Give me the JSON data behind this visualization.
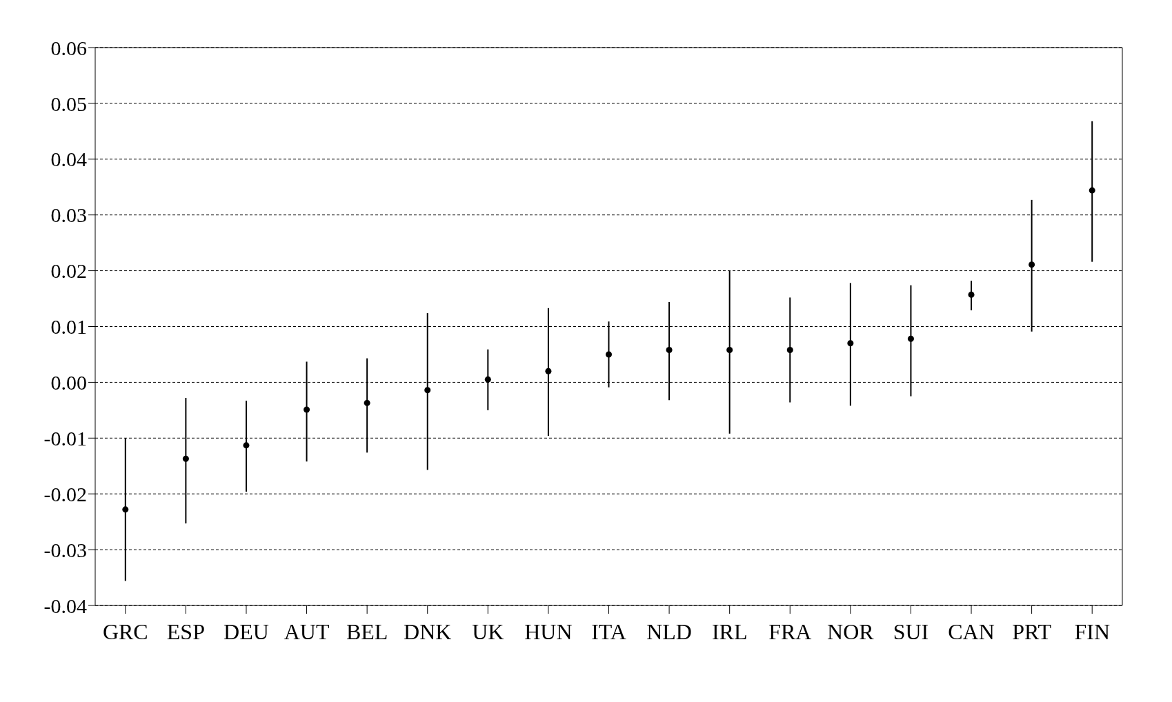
{
  "chart_data": {
    "type": "scatter",
    "categories": [
      "GRC",
      "ESP",
      "DEU",
      "AUT",
      "BEL",
      "DNK",
      "UK",
      "HUN",
      "ITA",
      "NLD",
      "IRL",
      "FRA",
      "NOR",
      "SUI",
      "CAN",
      "PRT",
      "FIN"
    ],
    "series": [
      {
        "color": "#000000",
        "values": [
          -0.0228,
          -0.0137,
          -0.0113,
          -0.0049,
          -0.0037,
          -0.0014,
          0.0005,
          0.002,
          0.005,
          0.0058,
          0.0058,
          0.0058,
          0.007,
          0.0078,
          0.0157,
          0.0211,
          0.0344
        ],
        "errors": [
          [
            -0.0356,
            -0.01
          ],
          [
            -0.0253,
            -0.0028
          ],
          [
            -0.0196,
            -0.0033
          ],
          [
            -0.0142,
            0.0037
          ],
          [
            -0.0126,
            0.0043
          ],
          [
            -0.0157,
            0.0124
          ],
          [
            -0.005,
            0.0059
          ],
          [
            -0.0096,
            0.0133
          ],
          [
            -0.0009,
            0.0109
          ],
          [
            -0.0032,
            0.0144
          ],
          [
            -0.0092,
            0.02
          ],
          [
            -0.0036,
            0.0152
          ],
          [
            -0.0042,
            0.0178
          ],
          [
            -0.0025,
            0.0174
          ],
          [
            0.0129,
            0.0182
          ],
          [
            0.0091,
            0.0327
          ],
          [
            0.0216,
            0.0468
          ]
        ]
      }
    ],
    "ylim": [
      -0.04,
      0.06
    ],
    "yticks": [
      {
        "value": -0.04,
        "label": "-0.04"
      },
      {
        "value": -0.03,
        "label": "-0.03"
      },
      {
        "value": -0.02,
        "label": "-0.02"
      },
      {
        "value": -0.01,
        "label": "-0.01"
      },
      {
        "value": 0,
        "label": "0.00"
      },
      {
        "value": 0.01,
        "label": "0.01"
      },
      {
        "value": 0.02,
        "label": "0.02"
      },
      {
        "value": 0.03,
        "label": "0.03"
      },
      {
        "value": 0.04,
        "label": "0.04"
      },
      {
        "value": 0.05,
        "label": "0.05"
      },
      {
        "value": 0.06,
        "label": "0.06"
      }
    ],
    "grid": "y",
    "marker": "circle"
  }
}
